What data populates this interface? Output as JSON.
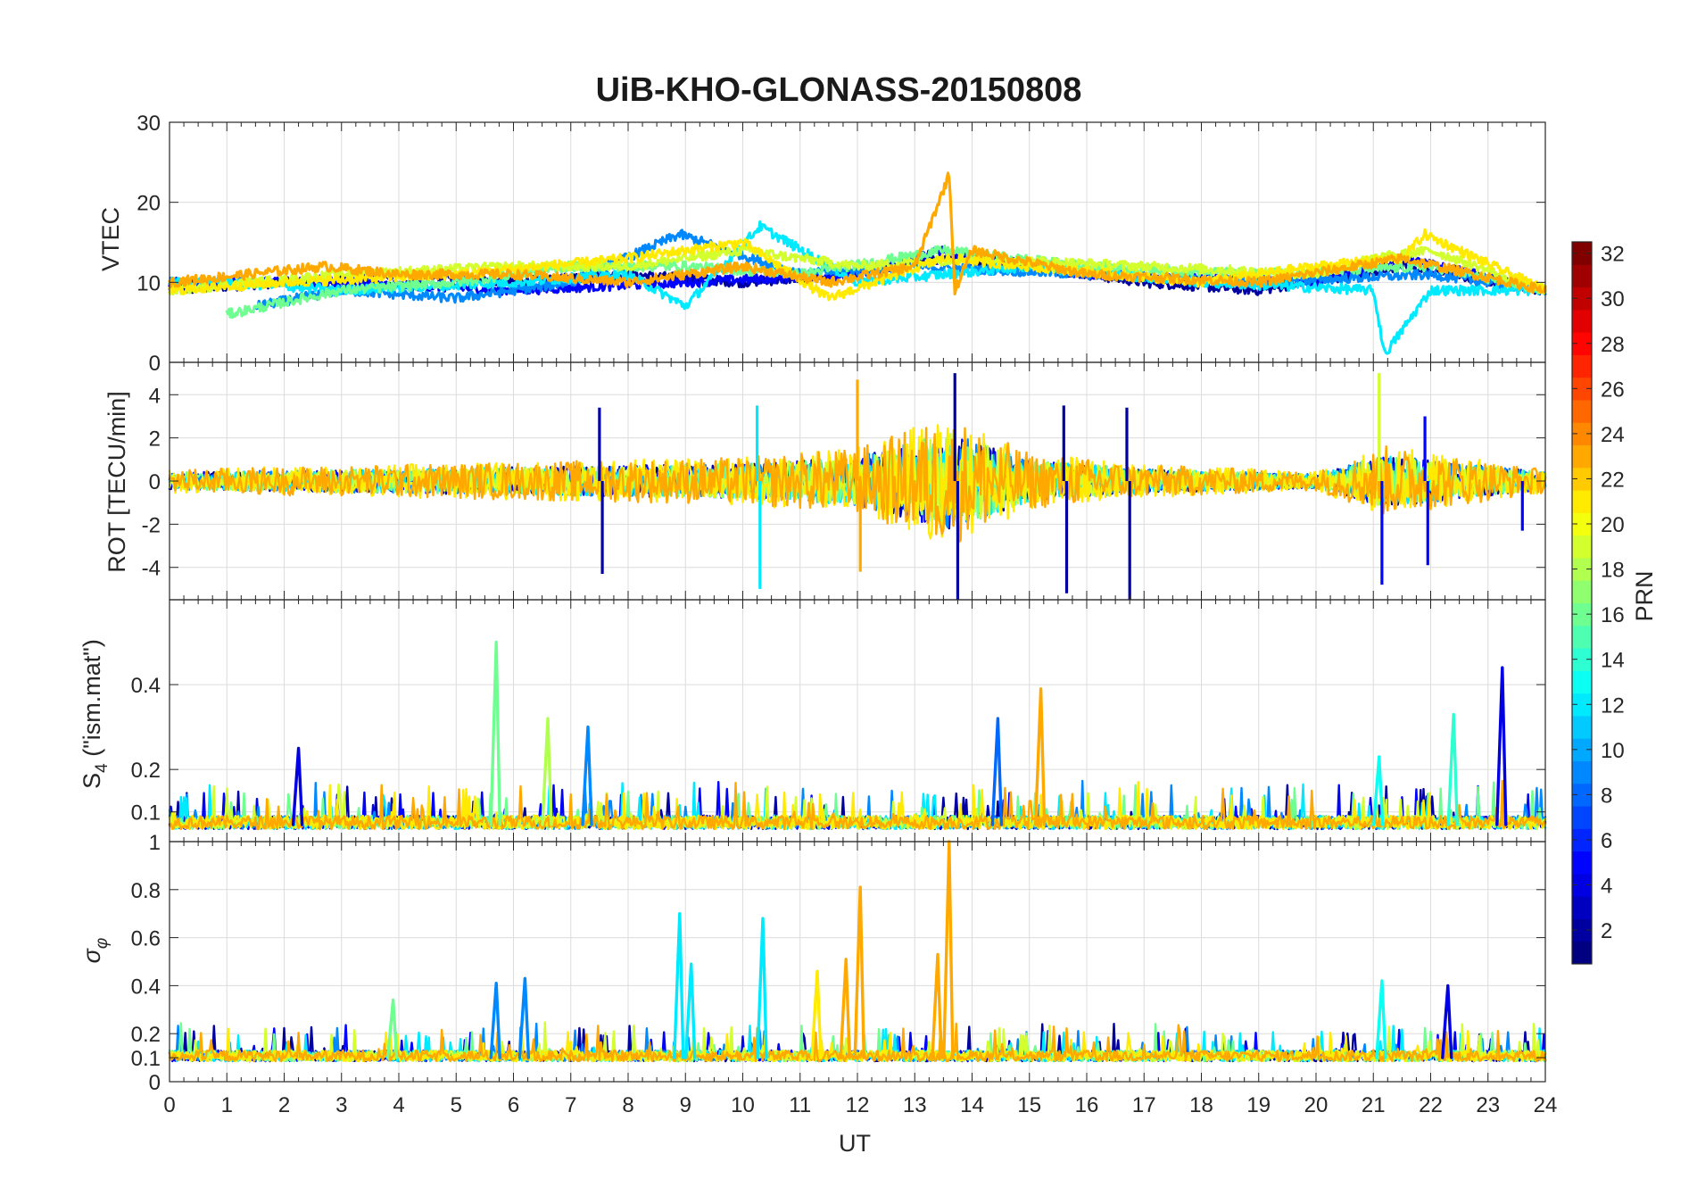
{
  "chart_data": [
    {
      "type": "line",
      "title": "UiB-KHO-GLONASS-20150808",
      "panel": "VTEC",
      "ylabel": "VTEC",
      "xlabel": "",
      "xlim": [
        0,
        24
      ],
      "ylim": [
        0,
        30
      ],
      "yticks": [
        0,
        10,
        20,
        30
      ],
      "grid": true,
      "series": [
        {
          "name": "PRN 2",
          "prn": 2,
          "x": [
            0,
            2,
            4,
            6,
            8,
            10,
            12,
            13.5,
            15,
            17,
            19,
            21.5,
            24
          ],
          "values": [
            9,
            10,
            11,
            10,
            11,
            10,
            11,
            13,
            12,
            10,
            9,
            12,
            9
          ]
        },
        {
          "name": "PRN 5",
          "prn": 5,
          "x": [
            0,
            3,
            6,
            9,
            12,
            13.5,
            16,
            20,
            21.5,
            24
          ],
          "values": [
            10,
            10,
            9,
            10,
            11,
            14,
            11,
            10,
            13,
            9
          ]
        },
        {
          "name": "PRN 9",
          "prn": 9,
          "x": [
            1.5,
            3,
            5,
            7,
            8.9,
            11,
            13,
            16,
            19,
            22,
            24
          ],
          "values": [
            7,
            9,
            8,
            10,
            16,
            11,
            12,
            11,
            10,
            11,
            9
          ]
        },
        {
          "name": "PRN 12",
          "prn": 12,
          "x": [
            0,
            1,
            3,
            6,
            8,
            9,
            10.3,
            12,
            15,
            18,
            21,
            21.2,
            22,
            24
          ],
          "values": [
            10,
            10,
            9,
            10,
            11,
            7,
            17,
            10,
            12,
            10,
            9,
            1,
            9,
            9
          ]
        },
        {
          "name": "PRN 16",
          "prn": 16,
          "x": [
            1,
            3,
            5,
            7,
            9,
            11,
            13.5,
            16,
            19,
            22,
            24
          ],
          "values": [
            6,
            9,
            10,
            12,
            12,
            11,
            14,
            12,
            11,
            12,
            9
          ]
        },
        {
          "name": "PRN 19",
          "prn": 19,
          "x": [
            0,
            3,
            6,
            8,
            10,
            12,
            14,
            17,
            20,
            21,
            22,
            24
          ],
          "values": [
            9,
            11,
            12,
            12,
            14,
            12,
            13,
            12,
            11,
            13,
            14,
            9
          ]
        },
        {
          "name": "PRN 21",
          "prn": 21,
          "x": [
            0,
            2,
            5,
            8,
            10,
            11.5,
            13.5,
            15,
            18,
            20,
            21.5,
            21.9,
            24
          ],
          "values": [
            9,
            10,
            11,
            13,
            15,
            8,
            13,
            12,
            10,
            12,
            13,
            16,
            9
          ]
        },
        {
          "name": "PRN 23",
          "prn": 23,
          "x": [
            0,
            2.7,
            4,
            6,
            8,
            10,
            11.5,
            13,
            13.6,
            13.7,
            14,
            16,
            19,
            21.5,
            24
          ],
          "values": [
            10,
            12,
            11,
            11,
            10,
            12,
            10,
            12,
            23.5,
            9,
            14,
            11,
            10,
            13,
            9
          ]
        }
      ]
    },
    {
      "type": "line",
      "panel": "ROT",
      "ylabel": "ROT [TECU/min]",
      "xlabel": "",
      "xlim": [
        0,
        24
      ],
      "ylim": [
        -5.5,
        5.5
      ],
      "yticks": [
        -4,
        -2,
        0,
        2,
        4
      ],
      "grid": true,
      "spikes": [
        {
          "x": 7.5,
          "value": 3.4,
          "prn": 2
        },
        {
          "x": 7.55,
          "value": -4.3,
          "prn": 2
        },
        {
          "x": 10.3,
          "value": -5.0,
          "prn": 12
        },
        {
          "x": 10.25,
          "value": 3.5,
          "prn": 12
        },
        {
          "x": 12.0,
          "value": 4.7,
          "prn": 23
        },
        {
          "x": 12.05,
          "value": -4.2,
          "prn": 23
        },
        {
          "x": 13.7,
          "value": 5.0,
          "prn": 2
        },
        {
          "x": 13.75,
          "value": -5.5,
          "prn": 2
        },
        {
          "x": 15.6,
          "value": 3.5,
          "prn": 2
        },
        {
          "x": 15.65,
          "value": -5.2,
          "prn": 2
        },
        {
          "x": 16.7,
          "value": 3.4,
          "prn": 2
        },
        {
          "x": 16.75,
          "value": -5.5,
          "prn": 2
        },
        {
          "x": 21.1,
          "value": 5.0,
          "prn": 19
        },
        {
          "x": 21.15,
          "value": -4.8,
          "prn": 5
        },
        {
          "x": 21.9,
          "value": 3.0,
          "prn": 5
        },
        {
          "x": 21.95,
          "value": -3.9,
          "prn": 5
        },
        {
          "x": 23.6,
          "value": -2.3,
          "prn": 5
        }
      ],
      "noise_amplitude": [
        {
          "x": 0,
          "amp": 0.5
        },
        {
          "x": 6,
          "amp": 0.8
        },
        {
          "x": 10,
          "amp": 1.0
        },
        {
          "x": 12,
          "amp": 1.4
        },
        {
          "x": 13.6,
          "amp": 2.8
        },
        {
          "x": 15,
          "amp": 1.2
        },
        {
          "x": 17,
          "amp": 0.7
        },
        {
          "x": 20,
          "amp": 0.4
        },
        {
          "x": 21.2,
          "amp": 1.5
        },
        {
          "x": 24,
          "amp": 0.5
        }
      ]
    },
    {
      "type": "line",
      "panel": "S4",
      "ylabel": "S4 (\"ism.mat\")",
      "ylabel_main": "S",
      "ylabel_sub": "4",
      "ylabel_rest": " (\"ism.mat\")",
      "xlabel": "",
      "xlim": [
        0,
        24
      ],
      "ylim": [
        0.03,
        0.6
      ],
      "yticks": [
        0.1,
        0.2,
        0.4
      ],
      "grid": true,
      "spikes": [
        {
          "x": 2.25,
          "value": 0.25,
          "prn": 4
        },
        {
          "x": 5.7,
          "value": 0.5,
          "prn": 16
        },
        {
          "x": 6.6,
          "value": 0.32,
          "prn": 18
        },
        {
          "x": 7.3,
          "value": 0.3,
          "prn": 9
        },
        {
          "x": 14.45,
          "value": 0.32,
          "prn": 8
        },
        {
          "x": 15.2,
          "value": 0.39,
          "prn": 23
        },
        {
          "x": 21.1,
          "value": 0.23,
          "prn": 13
        },
        {
          "x": 22.4,
          "value": 0.33,
          "prn": 14
        },
        {
          "x": 23.25,
          "value": 0.44,
          "prn": 4
        }
      ],
      "baseline": 0.07
    },
    {
      "type": "line",
      "panel": "sigma_phi",
      "ylabel": "σ φ",
      "ylabel_main": "σ",
      "ylabel_sub": "φ",
      "xlabel": "UT",
      "xlim": [
        0,
        24
      ],
      "ylim": [
        0,
        1
      ],
      "yticks": [
        0,
        0.1,
        0.2,
        0.4,
        0.6,
        0.8,
        1
      ],
      "ytick_labels": [
        "0",
        "0.1",
        "0.2",
        "0.4",
        "0.6",
        "0.8",
        "1"
      ],
      "xticks": [
        0,
        1,
        2,
        3,
        4,
        5,
        6,
        7,
        8,
        9,
        10,
        11,
        12,
        13,
        14,
        15,
        16,
        17,
        18,
        19,
        20,
        21,
        22,
        23,
        24
      ],
      "grid": true,
      "spikes": [
        {
          "x": 3.9,
          "value": 0.34,
          "prn": 16
        },
        {
          "x": 5.7,
          "value": 0.41,
          "prn": 9
        },
        {
          "x": 6.2,
          "value": 0.43,
          "prn": 9
        },
        {
          "x": 8.9,
          "value": 0.7,
          "prn": 12
        },
        {
          "x": 9.1,
          "value": 0.49,
          "prn": 12
        },
        {
          "x": 10.35,
          "value": 0.68,
          "prn": 12
        },
        {
          "x": 11.3,
          "value": 0.46,
          "prn": 21
        },
        {
          "x": 11.8,
          "value": 0.51,
          "prn": 23
        },
        {
          "x": 12.05,
          "value": 0.81,
          "prn": 23
        },
        {
          "x": 13.6,
          "value": 1.0,
          "prn": 23
        },
        {
          "x": 13.4,
          "value": 0.53,
          "prn": 23
        },
        {
          "x": 21.15,
          "value": 0.42,
          "prn": 13
        },
        {
          "x": 22.3,
          "value": 0.4,
          "prn": 4
        }
      ],
      "baseline": 0.1
    }
  ],
  "colorbar": {
    "label": "PRN",
    "min": 1,
    "max": 32,
    "ticks": [
      2,
      4,
      6,
      8,
      10,
      12,
      14,
      16,
      18,
      20,
      22,
      24,
      26,
      28,
      30,
      32
    ],
    "colormap": "jet"
  },
  "colors": {
    "text": "#262626",
    "grid": "#dcdcdc",
    "background": "#ffffff"
  }
}
